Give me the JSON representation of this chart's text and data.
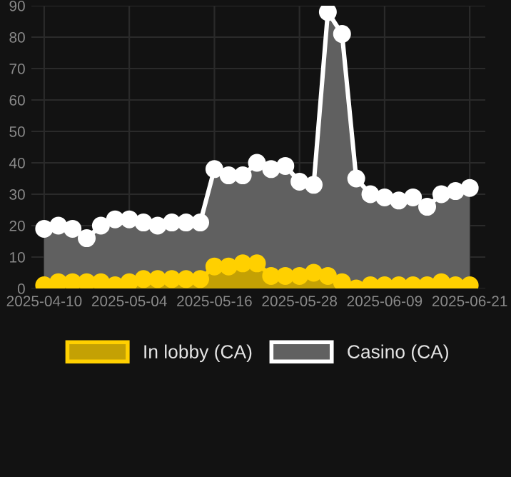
{
  "chart_data": {
    "type": "area",
    "categories": [
      "2025-04-10",
      null,
      null,
      null,
      null,
      null,
      "2025-05-04",
      null,
      null,
      null,
      null,
      null,
      "2025-05-16",
      null,
      null,
      null,
      null,
      null,
      "2025-05-28",
      null,
      null,
      null,
      null,
      null,
      "2025-06-09",
      null,
      null,
      null,
      null,
      null,
      "2025-06-21"
    ],
    "series": [
      {
        "name": "In lobby (CA)",
        "color": "#ffd000",
        "values": [
          1,
          2,
          2,
          2,
          2,
          1,
          2,
          3,
          3,
          3,
          3,
          3,
          7,
          7,
          8,
          8,
          4,
          4,
          4,
          5,
          4,
          2,
          0,
          1,
          1,
          1,
          1,
          1,
          2,
          1,
          1
        ]
      },
      {
        "name": "Casino (CA)",
        "color": "#ffffff",
        "values": [
          19,
          20,
          19,
          16,
          20,
          22,
          22,
          21,
          20,
          21,
          21,
          21,
          38,
          36,
          36,
          40,
          38,
          39,
          34,
          33,
          88,
          81,
          35,
          30,
          29,
          28,
          29,
          26,
          30,
          31,
          32
        ]
      }
    ],
    "ylim": [
      0,
      90
    ],
    "yticks": [
      0,
      10,
      20,
      30,
      40,
      50,
      60,
      70,
      80,
      90
    ],
    "grid": true,
    "legend": "bottom",
    "marker": "circle"
  }
}
